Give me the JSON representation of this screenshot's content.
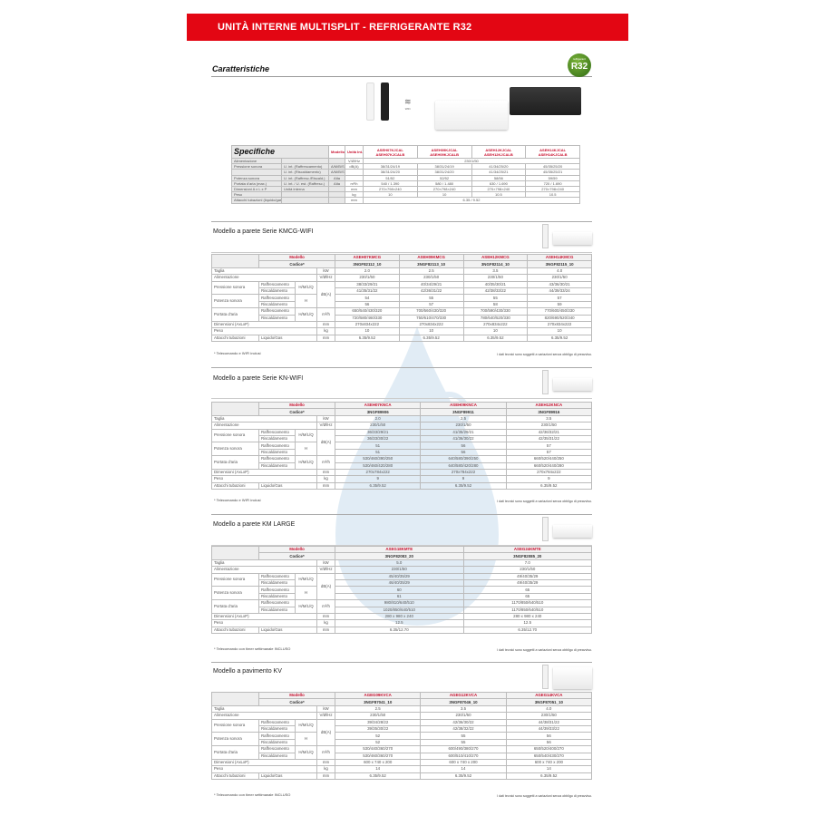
{
  "header": {
    "title": "UNITÀ INTERNE MULTISPLIT - REFRIGERANTE R32"
  },
  "caratteristiche": {
    "title": "Caratteristiche",
    "badge": "R32",
    "wifi_label": "WiFi"
  },
  "colors": {
    "brand_red": "#e30613",
    "model_red": "#c8102e"
  },
  "spec_table": {
    "title": "Specifiche",
    "col_modello": "Modello",
    "col_unita": "Unità Int.",
    "models": [
      [
        "ASEH07KJCAL",
        "ASEH07KJCALB"
      ],
      [
        "ASEH09KJCAL",
        "ASEH09KJCALB"
      ],
      [
        "ASEH12KJCAL",
        "ASEH12KJCALB"
      ],
      [
        "ASEH14KJCAL",
        "ASEH14KJCALB"
      ]
    ],
    "rows": [
      {
        "label": "Alimentazione",
        "sub": "",
        "mode": "",
        "unit": "V/Ø/Hz",
        "span": "230/1/50"
      },
      {
        "label": "Pressione sonora",
        "sub": "U. int. (Raffrescamento)",
        "mode": "A/M/B/S",
        "unit": "dB(A)",
        "values": [
          "38/31/24/19",
          "38/31/24/19",
          "41/34/25/20",
          "45/35/25/20"
        ]
      },
      {
        "label": "",
        "sub": "U. int. (Riscaldamento)",
        "mode": "A/M/B/S",
        "unit": "",
        "values": [
          "38/31/24/20",
          "38/31/24/20",
          "41/34/25/21",
          "45/35/25/21"
        ]
      },
      {
        "label": "Potenza sonora",
        "sub": "U. int. (Raffresc./Riscald.)",
        "mode": "Alta",
        "unit": "",
        "values": [
          "51/52",
          "52/52",
          "58/56",
          "59/59"
        ]
      },
      {
        "label": "Portata d'aria (max.)",
        "sub": "U. int. / U. est. (Raffresc.)",
        "mode": "Alta",
        "unit": "m³/h",
        "values": [
          "540 / 1.390",
          "580 / 1.480",
          "630 / 1.690",
          "720 / 1.690"
        ]
      },
      {
        "label": "Dimensioni A x L x P",
        "sub": "Unità interna",
        "mode": "",
        "unit": "mm",
        "values": [
          "270×798×240",
          "270×798×240",
          "270×798×240",
          "270×798×240"
        ]
      },
      {
        "label": "Peso",
        "sub": "",
        "mode": "",
        "unit": "kg",
        "values": [
          "10",
          "10",
          "10.5",
          "10.5"
        ]
      },
      {
        "label": "Attacchi tubazioni (liquido/gas)",
        "sub": "",
        "mode": "",
        "unit": "mm",
        "span": "6.35 / 9.52"
      }
    ]
  },
  "labels": {
    "modello": "Modello",
    "codice": "Codice*",
    "taglia": "Taglia",
    "alimentazione": "Alimentazione",
    "pressione": "Pressione sonora",
    "potenza": "Potenza sonora",
    "portata": "Portata d'aria",
    "raff": "Raffrescamento",
    "risc": "Riscaldamento",
    "hmlq": "H/M/L/Q",
    "h": "H",
    "dimensioni": "Dimensioni (AxLxP)",
    "peso": "Peso",
    "attacchi": "Attacchi tubazioni",
    "liqgas": "Liquido/Gas",
    "u_kw": "kW",
    "u_v": "V/Ø/Hz",
    "u_db": "dB(A)",
    "u_m3": "m³/h",
    "u_mm": "mm",
    "u_kg": "kg"
  },
  "sections": [
    {
      "title": "Modello a parete Serie KMCG-WIFI",
      "models": [
        "ASEH07KMCG",
        "ASEH09KMCG",
        "ASEH12KMCG",
        "ASEH14KMCG"
      ],
      "codes": [
        "3NGF82112_10",
        "3NGF82113_10",
        "3NGF82114_10",
        "3NGF82115_10"
      ],
      "taglia": [
        "2.0",
        "2.5",
        "3.5",
        "4.0"
      ],
      "alimentazione": [
        "230/1/50",
        "230/1/50",
        "230/1/50",
        "230/1/50"
      ],
      "pressione_raff": [
        "38/33/29/21",
        "40/34/29/21",
        "40/35/30/21",
        "43/36/30/21"
      ],
      "pressione_risc": [
        "41/35/31/22",
        "42/36/31/22",
        "42/38/33/22",
        "44/39/33/24"
      ],
      "potenza_raff": [
        "54",
        "55",
        "55",
        "57"
      ],
      "potenza_risc": [
        "56",
        "57",
        "58",
        "59"
      ],
      "portata_raff": [
        "650/540/430/320",
        "700/560/430/320",
        "700/590/430/330",
        "770/600/450/330"
      ],
      "portata_risc": [
        "720/580/460/330",
        "750/610/470/330",
        "780/640/520/330",
        "820/690/520/340"
      ],
      "dimensioni": [
        "270x834x222",
        "270x834x222",
        "270x834x222",
        "270x834x222"
      ],
      "peso": [
        "10",
        "10",
        "10",
        "10"
      ],
      "attacchi": [
        "6.35/9.52",
        "6.35/9.52",
        "6.35/9.52",
        "6.35/9.52"
      ],
      "footnote": "* Telecomando e WIFI inclusi",
      "disclaimer": "I dati tecnici sono soggetti a variazioni senza obbligo di preavviso."
    },
    {
      "title": "Modello a parete Serie KN-WIFI",
      "models": [
        "ASEH07KNCA",
        "ASEH09KNCA",
        "ASEH12KNCA"
      ],
      "codes": [
        "3NGF89906",
        "3NGF89911",
        "3NGF89916"
      ],
      "taglia": [
        "2.0",
        "2.5",
        "3.5"
      ],
      "alimentazione": [
        "230/1/50",
        "230/1/50",
        "230/1/50"
      ],
      "pressione_raff": [
        "36/33/29/21",
        "41/35/29/21",
        "42/36/32/21"
      ],
      "pressione_risc": [
        "36/33/30/22",
        "41/36/30/22",
        "42/35/31/22"
      ],
      "potenza_raff": [
        "51",
        "56",
        "57"
      ],
      "potenza_risc": [
        "51",
        "56",
        "57"
      ],
      "portata_raff": [
        "530/460/390/250",
        "640/580/390/250",
        "660/520/440/250"
      ],
      "portata_risc": [
        "530/460/420/280",
        "640/580/420/280",
        "660/520/440/280"
      ],
      "dimensioni": [
        "270x784x222",
        "270x784x222",
        "270x784x222"
      ],
      "peso": [
        "9",
        "9",
        "9"
      ],
      "attacchi": [
        "6.35/9.52",
        "6.35/9.52",
        "6.35/9.52"
      ],
      "footnote": "* Telecomando e WIFI inclusi",
      "disclaimer": "I dati tecnici sono soggetti a variazioni senza obbligo di preavviso."
    },
    {
      "title": "Modello a parete KM LARGE",
      "models": [
        "ASEG18KMTE",
        "ASEG24KMTE"
      ],
      "codes": [
        "3NGF82083_20",
        "3NGF82085_20"
      ],
      "taglia": [
        "5.0",
        "7.0"
      ],
      "alimentazione": [
        "230/1/50",
        "230/1/50"
      ],
      "pressione_raff": [
        "45/40/35/29",
        "49/40/35/29"
      ],
      "pressione_risc": [
        "46/40/35/29",
        "49/40/35/29"
      ],
      "potenza_raff": [
        "60",
        "65"
      ],
      "potenza_risc": [
        "61",
        "65"
      ],
      "portata_raff": [
        "980/810/640/510",
        "1170/850/640/510"
      ],
      "portata_risc": [
        "1020/850/640/510",
        "1170/850/640/510"
      ],
      "dimensioni": [
        "280 x 980 x 240",
        "280 x 980 x 240"
      ],
      "peso": [
        "12.5",
        "12.5"
      ],
      "attacchi": [
        "6.35/12.70",
        "6.35/12.70"
      ],
      "footnote": "* Telecomando con timer settimanale INCLUSO",
      "disclaimer": "I dati tecnici sono soggetti a variazioni senza obbligo di preavviso."
    },
    {
      "title": "Modello a pavimento KV",
      "models": [
        "AGEG09KVCA",
        "AGEG12KVCA",
        "AGEG14KVCA"
      ],
      "codes": [
        "3NGF87041_10",
        "3NGF87046_10",
        "3NGF87051_10"
      ],
      "taglia": [
        "2.5",
        "3.5",
        "4.0"
      ],
      "alimentazione": [
        "230/1/50",
        "230/1/50",
        "230/1/50"
      ],
      "pressione_raff": [
        "39/34/28/22",
        "42/36/30/22",
        "44/38/31/22"
      ],
      "pressione_risc": [
        "39/35/30/22",
        "42/38/32/22",
        "44/39/33/22"
      ],
      "potenza_raff": [
        "52",
        "55",
        "56"
      ],
      "potenza_risc": [
        "52",
        "55",
        "56"
      ],
      "portata_raff": [
        "530/440/360/270",
        "600/490/380/270",
        "650/520/400/270"
      ],
      "portata_risc": [
        "530/460/360/270",
        "600/510/410/270",
        "650/540/430/270"
      ],
      "dimensioni": [
        "600 x 740 x 200",
        "600 x 740 x 200",
        "600 x 740 x 200"
      ],
      "peso": [
        "14",
        "14",
        "14"
      ],
      "attacchi": [
        "6.35/9.52",
        "6.35/9.52",
        "6.35/9.52"
      ],
      "footnote": "* Telecomando con timer settimanale INCLUSO",
      "disclaimer": "I dati tecnici sono soggetti a variazioni senza obbligo di preavviso."
    }
  ]
}
